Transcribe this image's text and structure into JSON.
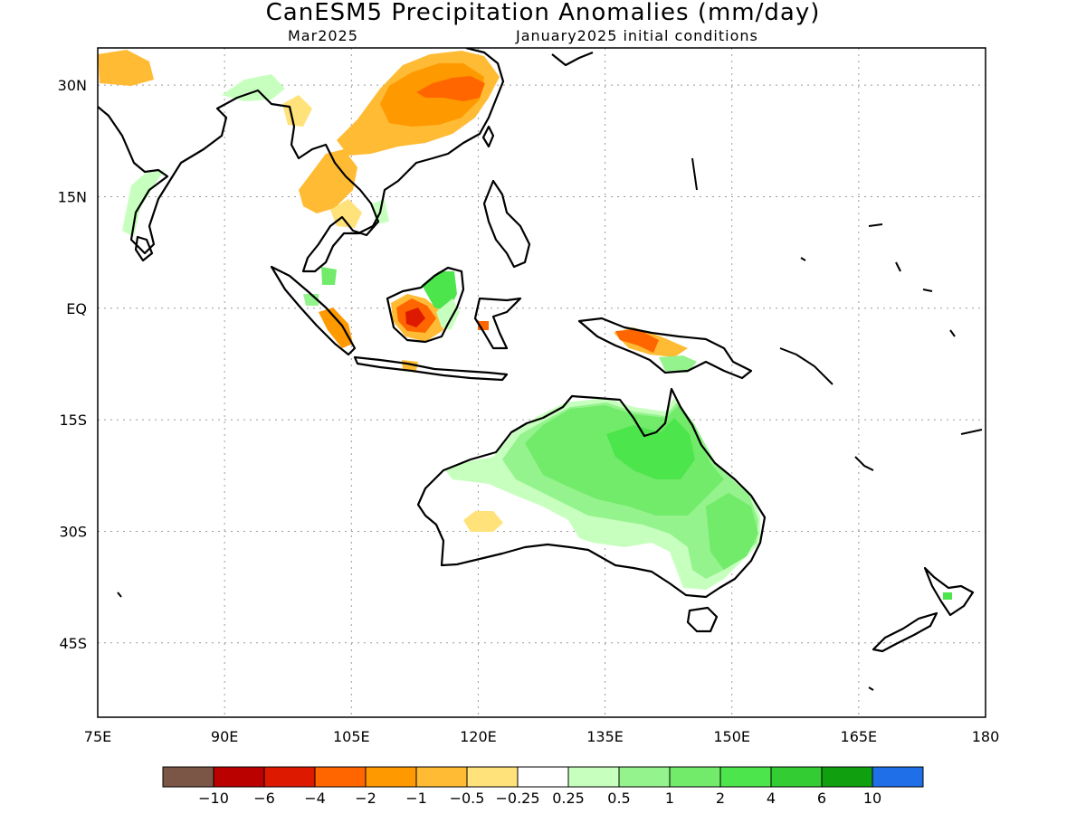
{
  "header": {
    "title": "CanESM5 Precipitation Anomalies (mm/day)",
    "valid_month": "Mar2025",
    "init_conditions": "January2025 initial conditions"
  },
  "map": {
    "lon_range": [
      75,
      180
    ],
    "lat_range": [
      -55,
      35
    ],
    "lon_ticks": [
      {
        "value": 75,
        "label": "75E"
      },
      {
        "value": 90,
        "label": "90E"
      },
      {
        "value": 105,
        "label": "105E"
      },
      {
        "value": 120,
        "label": "120E"
      },
      {
        "value": 135,
        "label": "135E"
      },
      {
        "value": 150,
        "label": "150E"
      },
      {
        "value": 165,
        "label": "165E"
      },
      {
        "value": 180,
        "label": "180"
      }
    ],
    "lat_ticks": [
      {
        "value": 30,
        "label": "30N"
      },
      {
        "value": 15,
        "label": "15N"
      },
      {
        "value": 0,
        "label": "EQ"
      },
      {
        "value": -15,
        "label": "15S"
      },
      {
        "value": -30,
        "label": "30S"
      },
      {
        "value": -45,
        "label": "45S"
      }
    ],
    "grid": "dotted"
  },
  "colorbar": {
    "colors": [
      "#7b5646",
      "#bb0000",
      "#dd1a00",
      "#ff6600",
      "#ff9900",
      "#ffbb33",
      "#ffe27a",
      "#ffffff",
      "#c7ffbe",
      "#94f38c",
      "#72ea6a",
      "#4de54c",
      "#33cc33",
      "#0f9f0f",
      "#1f6fe8"
    ],
    "labels": [
      "−10",
      "−6",
      "−4",
      "−2",
      "−1",
      "−0.5",
      "−0.25",
      "0.25",
      "0.5",
      "1",
      "2",
      "4",
      "6",
      "10"
    ]
  },
  "anomaly_regions": [
    {
      "name": "south-china",
      "value": -1.5
    },
    {
      "name": "eastern-china-core",
      "value": -3
    },
    {
      "name": "indochina",
      "value": -0.5
    },
    {
      "name": "central-borneo",
      "value": -3
    },
    {
      "name": "southern-sumatra",
      "value": -2
    },
    {
      "name": "new-guinea",
      "value": -2
    },
    {
      "name": "western-australia-patch",
      "value": -0.25
    },
    {
      "name": "northern-australia",
      "value": 2
    },
    {
      "name": "eastern-australia",
      "value": 1
    },
    {
      "name": "northeast-borneo",
      "value": 2
    }
  ]
}
